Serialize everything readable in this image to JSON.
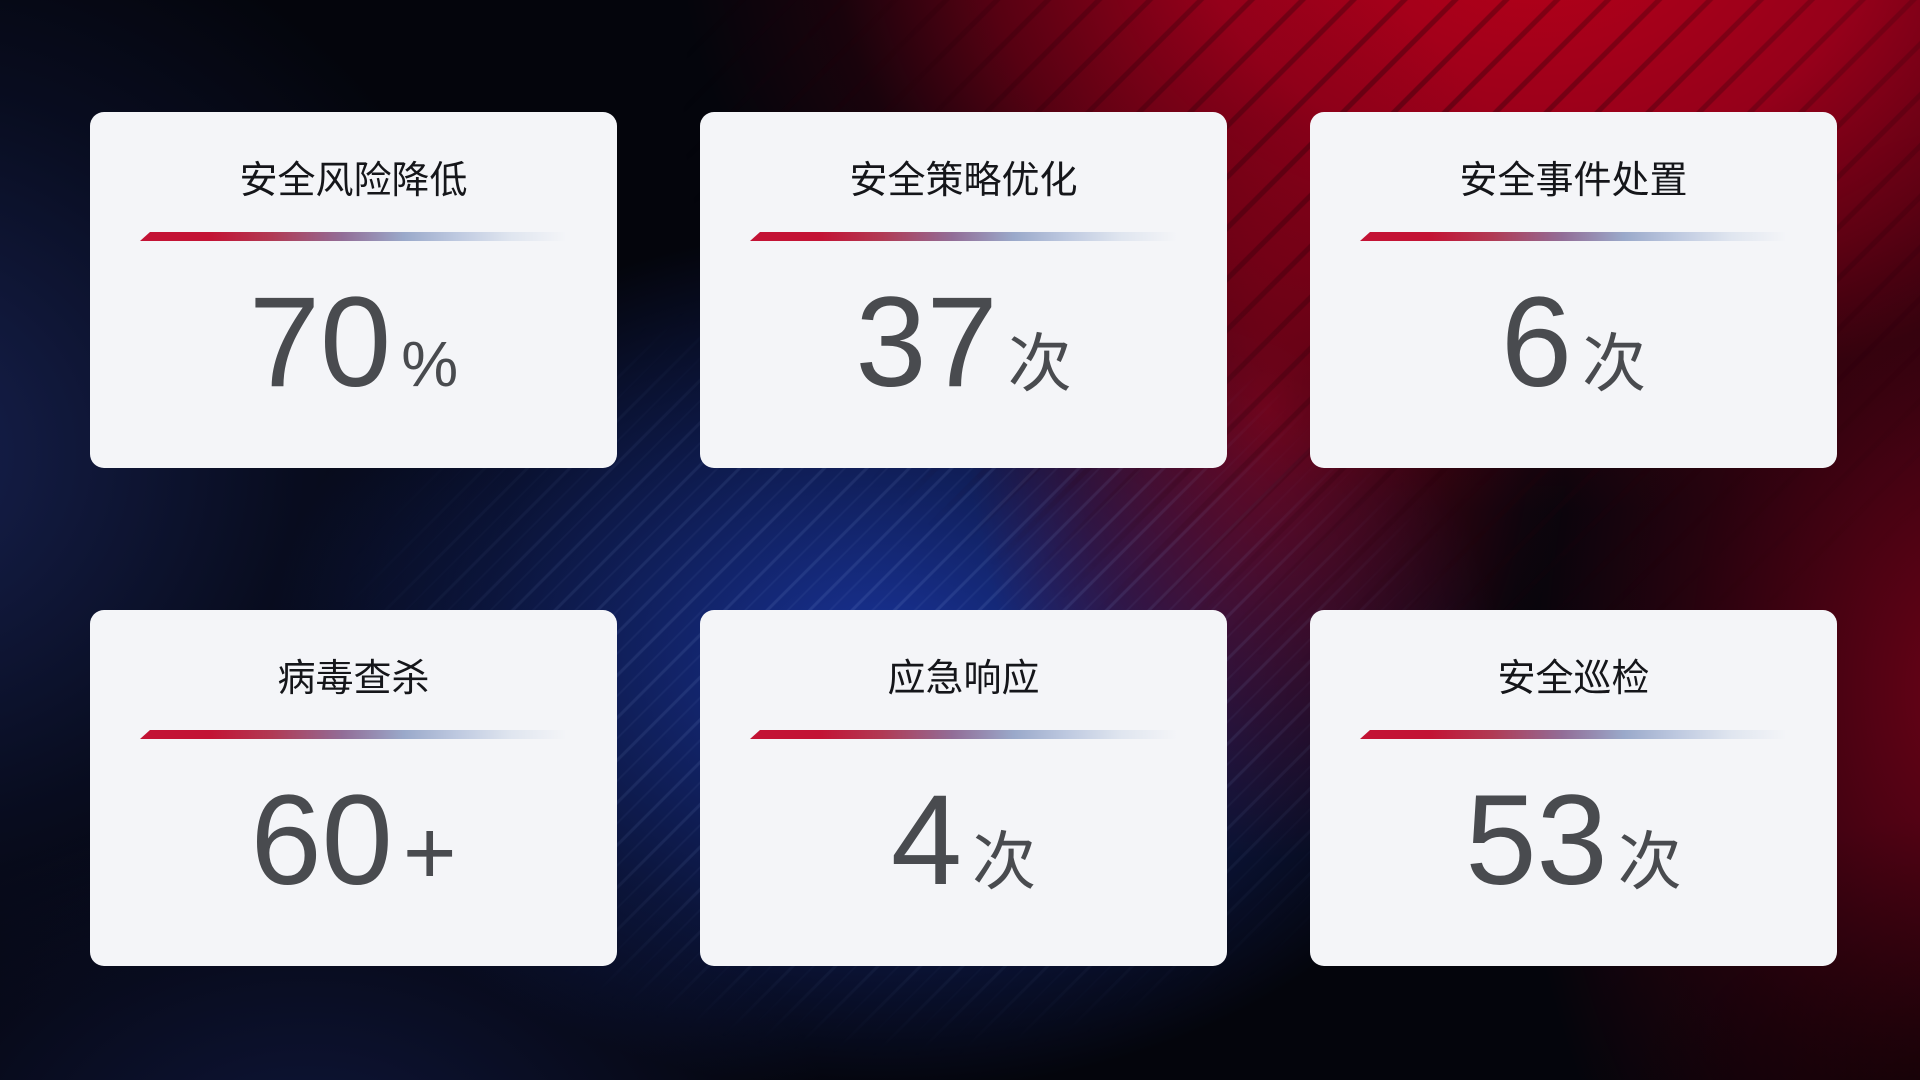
{
  "cards": [
    {
      "title": "安全风险降低",
      "value": "70",
      "unit": "%"
    },
    {
      "title": "安全策略优化",
      "value": "37",
      "unit": "次"
    },
    {
      "title": "安全事件处置",
      "value": "6",
      "unit": "次"
    },
    {
      "title": "病毒查杀",
      "value": "60",
      "unit": "+"
    },
    {
      "title": "应急响应",
      "value": "4",
      "unit": "次"
    },
    {
      "title": "安全巡检",
      "value": "53",
      "unit": "次"
    }
  ],
  "colors": {
    "card_background": "#f4f5f8",
    "title_text": "#15161a",
    "value_text": "#494b4f",
    "divider_red": "#c31335",
    "divider_steel_blue": "#9aa9ca",
    "background_base": "#04050c",
    "background_red_glow": "#b50019",
    "background_blue_glow": "#1e3eba",
    "background_navy": "#1a265c"
  }
}
